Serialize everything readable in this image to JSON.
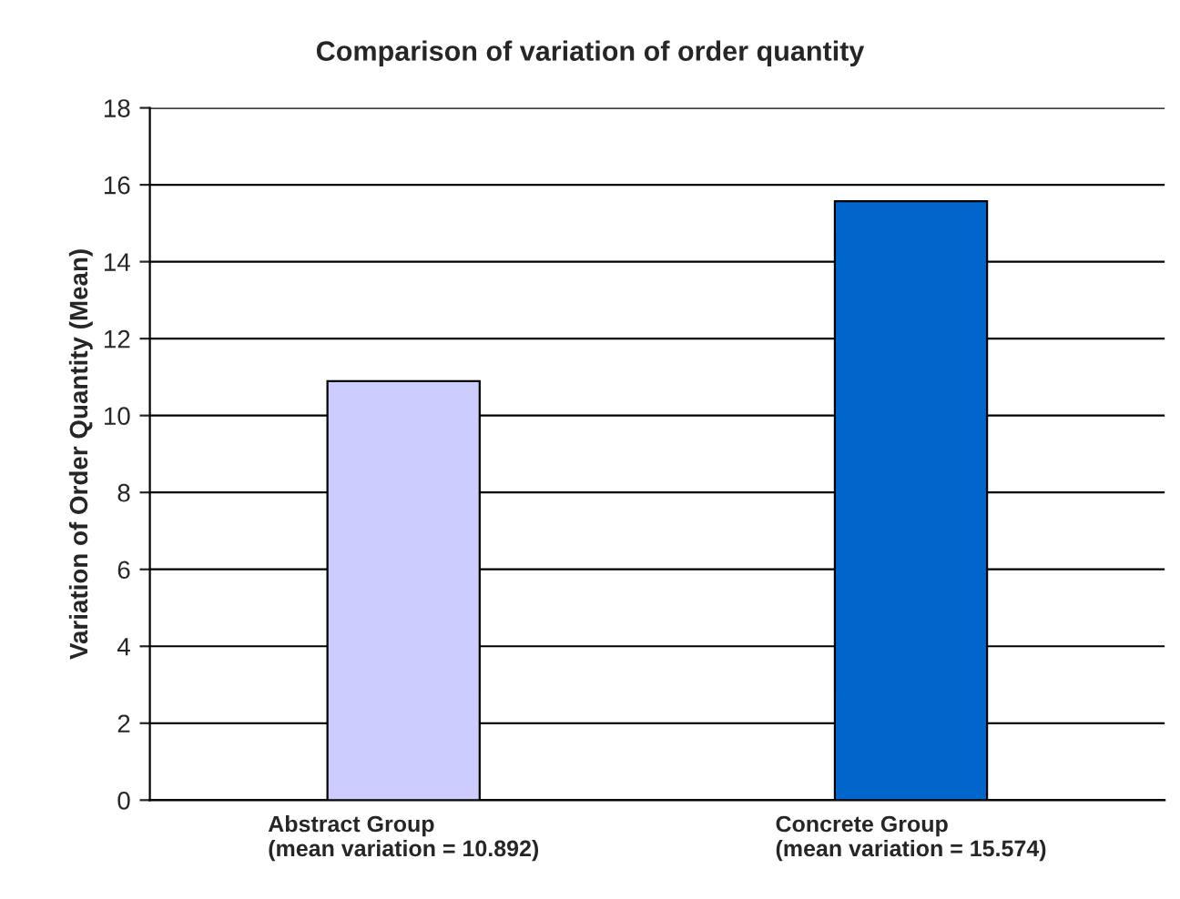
{
  "chart_data": {
    "type": "bar",
    "title": "Comparison of variation of order quantity",
    "ylabel": "Variation of Order Quantity (Mean)",
    "categories": [
      "Abstract Group\n(mean variation = 10.892)",
      "Concrete Group\n(mean variation = 15.574)"
    ],
    "values": [
      10.892,
      15.574
    ],
    "colors": [
      "#ccccff",
      "#0066cc"
    ],
    "ylim": [
      0,
      18
    ],
    "yticks": [
      0,
      2,
      4,
      6,
      8,
      10,
      12,
      14,
      16,
      18
    ],
    "grid": "y"
  }
}
